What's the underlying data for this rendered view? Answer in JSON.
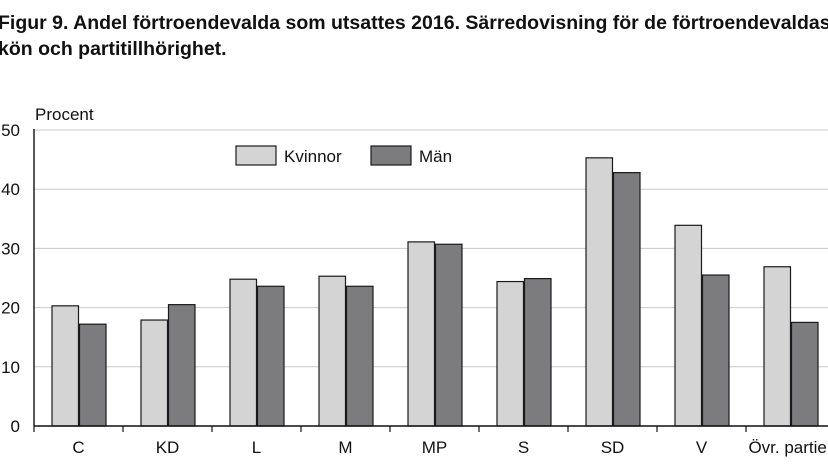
{
  "chart_data": {
    "type": "bar",
    "title": "Figur 9. Andel förtroendevalda som utsattes 2016. Särredovisning för de förtroendevaldas kön och partitillhörighet.",
    "ylabel": "Procent",
    "xlabel": "",
    "ylim": [
      0,
      50
    ],
    "yticks": [
      0,
      10,
      20,
      30,
      40,
      50
    ],
    "ytick_labels": [
      "0",
      "10",
      "20",
      "30",
      "40",
      "50"
    ],
    "categories": [
      "C",
      "KD",
      "L",
      "M",
      "MP",
      "S",
      "SD",
      "V",
      "Övr. partier"
    ],
    "series": [
      {
        "name": "Kvinnor",
        "color": "#d4d4d4",
        "values": [
          20.3,
          17.9,
          24.8,
          25.3,
          31.1,
          24.4,
          45.3,
          33.9,
          26.9
        ]
      },
      {
        "name": "Män",
        "color": "#7c7c7f",
        "values": [
          17.2,
          20.5,
          23.6,
          23.6,
          30.7,
          24.9,
          42.8,
          25.5,
          17.5
        ]
      }
    ],
    "legend_position": "top-center",
    "grid": "horizontal"
  }
}
